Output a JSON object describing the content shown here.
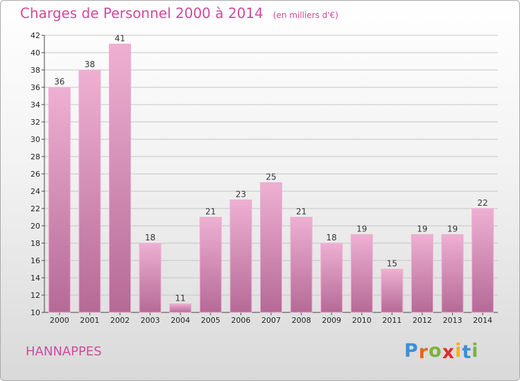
{
  "title": "Charges de Personnel 2000 à 2014",
  "subtitle": "(en milliers d'€)",
  "commune": "HANNAPPES",
  "logo": {
    "text": "Proxiti",
    "letter_colors": [
      "#3d8fd6",
      "#e8641f",
      "#7ab43c",
      "#e32b2b",
      "#f0b21b",
      "#3d8fd6",
      "#7ab43c"
    ]
  },
  "colors": {
    "bar_light": "#eeb0d2",
    "bar_dark": "#b56a96",
    "title": "#d04a9c",
    "grid": "#c4c4c4"
  },
  "chart_data": {
    "type": "bar",
    "title": "Charges de Personnel 2000 à 2014",
    "subtitle": "(en milliers d'€)",
    "categories": [
      "2000",
      "2001",
      "2002",
      "2003",
      "2004",
      "2005",
      "2006",
      "2007",
      "2008",
      "2009",
      "2010",
      "2011",
      "2012",
      "2013",
      "2014"
    ],
    "values": [
      36,
      38,
      41,
      18,
      11,
      21,
      23,
      25,
      21,
      18,
      19,
      15,
      19,
      19,
      22
    ],
    "xlabel": "",
    "ylabel": "",
    "ylim": [
      10,
      42
    ],
    "yticks": [
      10,
      12,
      14,
      16,
      18,
      20,
      22,
      24,
      26,
      28,
      30,
      32,
      34,
      36,
      38,
      40,
      42
    ],
    "grid": "horizontal",
    "data_labels": true
  }
}
